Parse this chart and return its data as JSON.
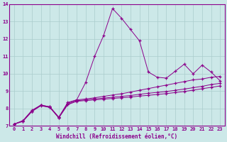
{
  "x": [
    0,
    1,
    2,
    3,
    4,
    5,
    6,
    7,
    8,
    9,
    10,
    11,
    12,
    13,
    14,
    15,
    16,
    17,
    18,
    19,
    20,
    21,
    22,
    23
  ],
  "series1": [
    7.1,
    7.3,
    7.9,
    8.2,
    8.1,
    7.5,
    8.35,
    8.5,
    9.5,
    11.0,
    12.2,
    13.75,
    13.2,
    12.55,
    11.9,
    10.1,
    9.8,
    9.75,
    10.15,
    10.55,
    10.0,
    10.5,
    10.1,
    9.6
  ],
  "series2": [
    7.1,
    7.3,
    7.85,
    8.2,
    8.1,
    7.5,
    8.3,
    8.5,
    8.55,
    8.62,
    8.7,
    8.78,
    8.85,
    8.95,
    9.05,
    9.15,
    9.25,
    9.35,
    9.45,
    9.55,
    9.65,
    9.7,
    9.8,
    9.85
  ],
  "series3": [
    7.1,
    7.28,
    7.85,
    8.18,
    8.08,
    7.48,
    8.25,
    8.45,
    8.5,
    8.55,
    8.6,
    8.65,
    8.7,
    8.75,
    8.82,
    8.88,
    8.93,
    8.98,
    9.05,
    9.12,
    9.2,
    9.28,
    9.38,
    9.45
  ],
  "series4": [
    7.1,
    7.26,
    7.83,
    8.16,
    8.06,
    7.46,
    8.22,
    8.42,
    8.46,
    8.5,
    8.54,
    8.58,
    8.62,
    8.66,
    8.72,
    8.76,
    8.81,
    8.86,
    8.92,
    8.98,
    9.06,
    9.14,
    9.22,
    9.3
  ],
  "line_color": "#8b008b",
  "bg_color": "#cce8e8",
  "grid_color": "#aacccc",
  "xlabel": "Windchill (Refroidissement éolien,°C)",
  "ylim": [
    7,
    14
  ],
  "xlim": [
    -0.5,
    23.5
  ],
  "yticks": [
    7,
    8,
    9,
    10,
    11,
    12,
    13,
    14
  ],
  "xticks": [
    0,
    1,
    2,
    3,
    4,
    5,
    6,
    7,
    8,
    9,
    10,
    11,
    12,
    13,
    14,
    15,
    16,
    17,
    18,
    19,
    20,
    21,
    22,
    23
  ]
}
